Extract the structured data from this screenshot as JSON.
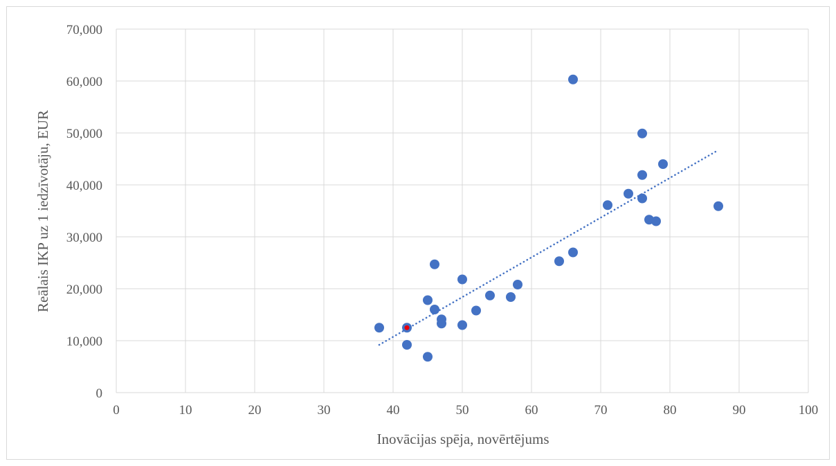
{
  "chart_data": {
    "type": "scatter",
    "xlabel": "Inovācijas spēja, novērtējums",
    "ylabel": "Reālais IKP uz 1 iedzīvotāju, EUR",
    "xlim": [
      0,
      100
    ],
    "ylim": [
      0,
      70000
    ],
    "x_ticks": [
      "0",
      "10",
      "20",
      "30",
      "40",
      "50",
      "60",
      "70",
      "80",
      "90",
      "100"
    ],
    "y_ticks": [
      "0",
      "10,000",
      "20,000",
      "30,000",
      "40,000",
      "50,000",
      "60,000",
      "70,000"
    ],
    "grid": true,
    "legend": "none",
    "series": [
      {
        "color": "#4472c4",
        "points": [
          {
            "x": 38,
            "y": 12500
          },
          {
            "x": 42,
            "y": 9200
          },
          {
            "x": 45,
            "y": 6900
          },
          {
            "x": 45,
            "y": 17800
          },
          {
            "x": 46,
            "y": 24700
          },
          {
            "x": 46,
            "y": 16000
          },
          {
            "x": 47,
            "y": 14100
          },
          {
            "x": 47,
            "y": 13300
          },
          {
            "x": 50,
            "y": 21800
          },
          {
            "x": 50,
            "y": 13000
          },
          {
            "x": 52,
            "y": 15800
          },
          {
            "x": 54,
            "y": 18700
          },
          {
            "x": 57,
            "y": 18400
          },
          {
            "x": 58,
            "y": 20800
          },
          {
            "x": 64,
            "y": 25300
          },
          {
            "x": 66,
            "y": 27000
          },
          {
            "x": 66,
            "y": 60300
          },
          {
            "x": 71,
            "y": 36100
          },
          {
            "x": 74,
            "y": 38300
          },
          {
            "x": 76,
            "y": 49900
          },
          {
            "x": 76,
            "y": 41900
          },
          {
            "x": 76,
            "y": 37400
          },
          {
            "x": 77,
            "y": 33300
          },
          {
            "x": 78,
            "y": 33000
          },
          {
            "x": 79,
            "y": 44000
          },
          {
            "x": 87,
            "y": 35900
          }
        ]
      }
    ],
    "highlighted_point": {
      "x": 42,
      "y": 12500,
      "color": "#4472c4",
      "center_color": "#e8000b"
    },
    "trendline": {
      "style": "dotted",
      "color": "#4472c4",
      "from": {
        "x": 38,
        "y": 9200
      },
      "to": {
        "x": 87,
        "y": 46700
      }
    }
  }
}
